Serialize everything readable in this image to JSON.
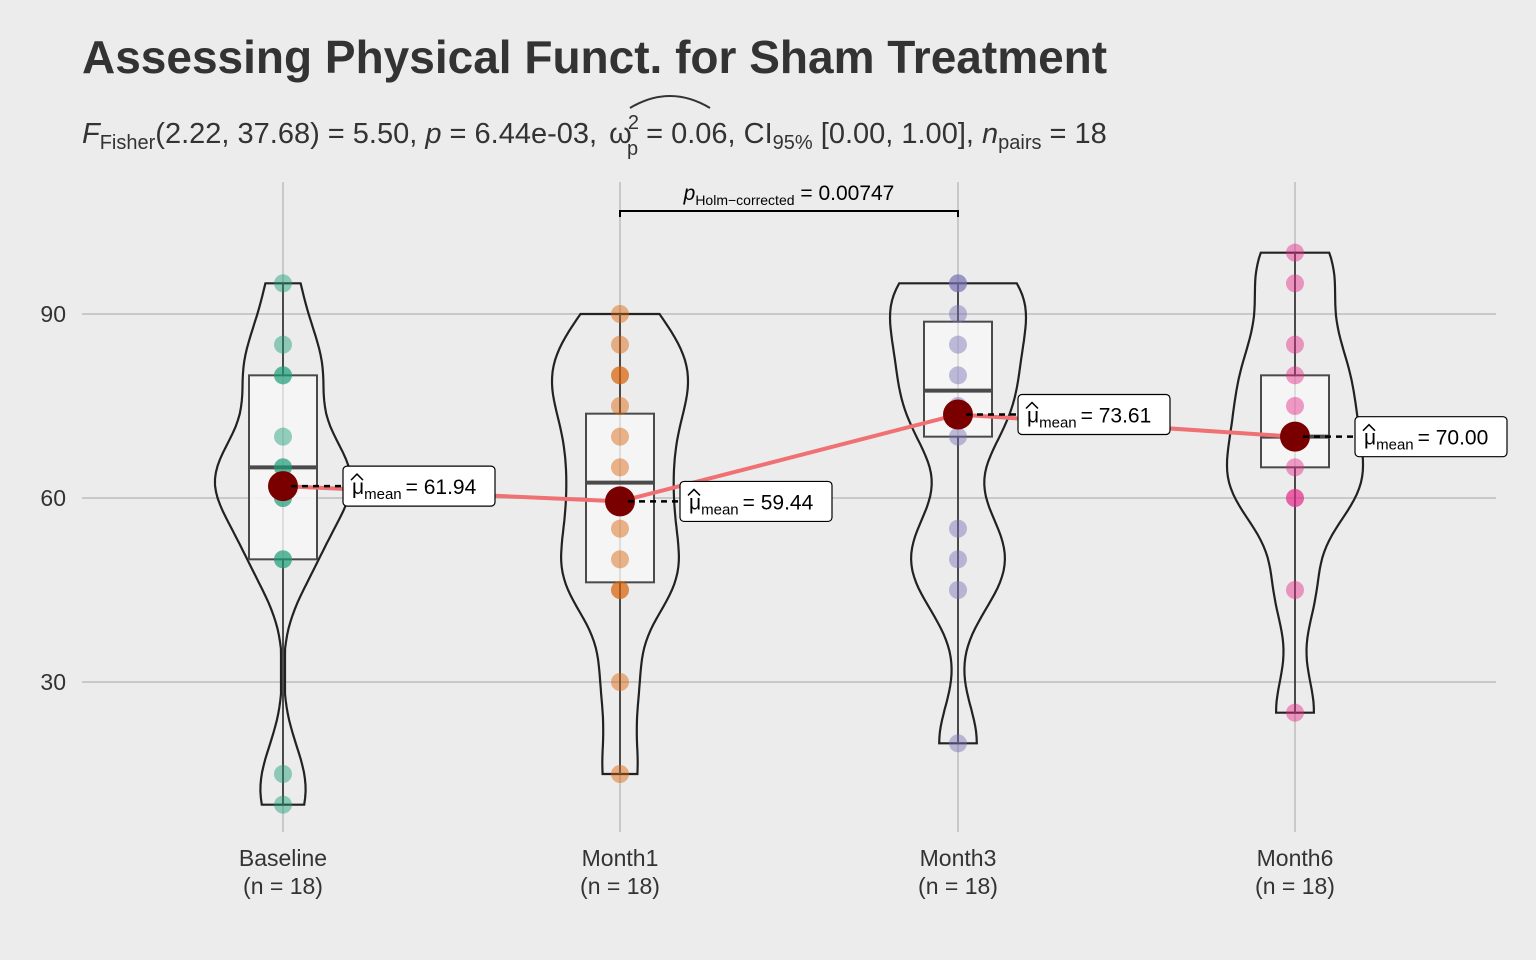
{
  "title": "Assessing Physical Funct. for Sham Treatment",
  "subtitle": {
    "F_symbol": "F",
    "F_sub": "Fisher",
    "F_args": "(2.22, 37.68)",
    "F_value": " = 5.50, ",
    "p_symbol": "p",
    "p_value": " = 6.44e-03, ",
    "omega_symbol": "ω",
    "omega_sup": "2",
    "omega_sub": "p",
    "omega_value": " = 0.06, CI",
    "ci_sub": "95%",
    "ci_value": " [0.00, 1.00], ",
    "n_symbol": "n",
    "n_sub": "pairs",
    "n_value": " = 18"
  },
  "colors": {
    "background": "#ececec",
    "grid": "#c9c9c9",
    "mean_line": "#f07173",
    "mean_point": "#7a0000",
    "groups": [
      "#1b9e77",
      "#d95f02",
      "#7570b3",
      "#e7298a"
    ]
  },
  "pairwise": {
    "label_symbol": "p",
    "label_sub": "Holm−corrected",
    "label_value": " = 0.00747",
    "from": "Month1",
    "to": "Month3"
  },
  "chart_data": {
    "type": "violin-box-scatter",
    "ylim": [
      5,
      110
    ],
    "yticks": [
      30,
      60,
      90
    ],
    "grid": true,
    "categories": [
      "Baseline",
      "Month1",
      "Month3",
      "Month6"
    ],
    "category_labels": [
      "Baseline",
      "Month1",
      "Month3",
      "Month6"
    ],
    "n_labels": [
      "(n = 18)",
      "(n = 18)",
      "(n = 18)",
      "(n = 18)"
    ],
    "groups": [
      {
        "name": "Baseline",
        "points": [
          95,
          85,
          80,
          80,
          70,
          65,
          65,
          62,
          60,
          60,
          50,
          50,
          15,
          10
        ],
        "box": {
          "q1": 50,
          "median": 65,
          "q3": 80,
          "min": 10,
          "max": 95
        },
        "mean": 61.94,
        "mean_label": "= 61.94"
      },
      {
        "name": "Month1",
        "points": [
          90,
          85,
          80,
          80,
          75,
          70,
          65,
          60,
          55,
          50,
          45,
          45,
          30,
          15
        ],
        "box": {
          "q1": 46.25,
          "median": 62.5,
          "q3": 73.75,
          "min": 15,
          "max": 90
        },
        "mean": 59.44,
        "mean_label": "= 59.44"
      },
      {
        "name": "Month3",
        "points": [
          95,
          95,
          90,
          85,
          80,
          75,
          70,
          55,
          50,
          45,
          20
        ],
        "box": {
          "q1": 70,
          "median": 77.5,
          "q3": 88.75,
          "min": 20,
          "max": 95
        },
        "mean": 73.61,
        "mean_label": "= 73.61"
      },
      {
        "name": "Month6",
        "points": [
          100,
          95,
          85,
          80,
          75,
          70,
          65,
          60,
          60,
          45,
          25
        ],
        "box": {
          "q1": 65,
          "median": 70,
          "q3": 80,
          "min": 25,
          "max": 100
        },
        "mean": 70.0,
        "mean_label": "= 70.00"
      }
    ]
  }
}
